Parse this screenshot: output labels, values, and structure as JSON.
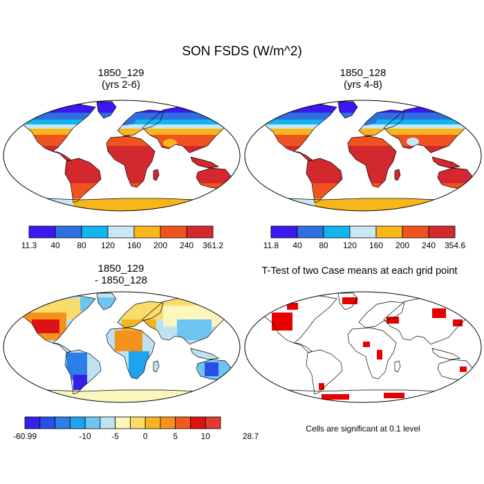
{
  "title": "SON FSDS (W/m^2)",
  "panels": [
    {
      "title_line1": "1850_129",
      "title_line2": "(yrs 2-6)"
    },
    {
      "title_line1": "1850_128",
      "title_line2": "(yrs 4-8)"
    },
    {
      "title_line1": "1850_129",
      "title_line2": "- 1850_128"
    },
    {
      "title_line1": "T-Test of two Case means at each grid point",
      "title_line2": ""
    }
  ],
  "colorbars": [
    {
      "colors": [
        "#3a18f0",
        "#2f6fe0",
        "#11b6ef",
        "#c9e7f5",
        "#f8b61a",
        "#f05320",
        "#d2282e"
      ],
      "labels": [
        "11.3",
        "40",
        "80",
        "120",
        "160",
        "200",
        "240",
        "361.2"
      ]
    },
    {
      "colors": [
        "#3a18f0",
        "#2f6fe0",
        "#11b6ef",
        "#c9e7f5",
        "#f8b61a",
        "#f05320",
        "#d2282e"
      ],
      "labels": [
        "11.8",
        "40",
        "80",
        "120",
        "160",
        "200",
        "240",
        "354.6"
      ]
    },
    {
      "colors": [
        "#3520e8",
        "#2a4fe6",
        "#2d7ee6",
        "#1ea4ef",
        "#6ec4f0",
        "#bfe2f3",
        "#fbf6bc",
        "#f9dc6a",
        "#f7b421",
        "#f5921c",
        "#f05a1e",
        "#dd1212",
        "#e13b34"
      ],
      "labels": [
        "-60.99",
        "-10",
        "-5",
        "0",
        "5",
        "10",
        "28.7"
      ],
      "label_positions": [
        0,
        4,
        6,
        8,
        10,
        12,
        15
      ]
    }
  ],
  "note": "Cells are significant at 0.1 level"
}
